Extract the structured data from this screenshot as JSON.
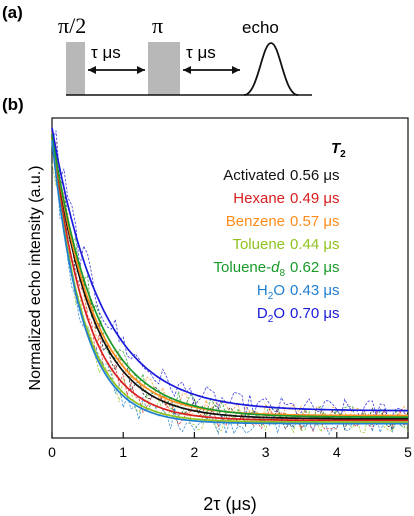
{
  "panel_a": {
    "label": "(a)",
    "pulse1_label": "π/2",
    "pulse2_label": "π",
    "delay1_label": "τ μs",
    "delay2_label": "τ μs",
    "echo_label": "echo",
    "pulse_color": "#b8b8b8"
  },
  "panel_b": {
    "label": "(b)"
  },
  "chart_data": {
    "type": "line",
    "title": "",
    "xlabel": "2τ (μs)",
    "ylabel": "Normalized echo intensity (a.u.)",
    "xlim": [
      0,
      5
    ],
    "ylim": [
      0,
      1
    ],
    "x_ticks": [
      "0",
      "1",
      "2",
      "3",
      "4",
      "5"
    ],
    "x_tick_values": [
      0,
      1,
      2,
      3,
      4,
      5
    ],
    "y_ticks_labeled": false,
    "grid": false,
    "legend_position": "top-right",
    "legend_title": "T",
    "legend_title_subscript": "2",
    "series": [
      {
        "name": "Activated",
        "value_label": "0.56 μs",
        "t2_us": 0.56,
        "color": "#111111",
        "fit_amplitude": 0.885,
        "fit_offset": 0.06
      },
      {
        "name": "Hexane",
        "value_label": "0.49 μs",
        "t2_us": 0.49,
        "color": "#d81e1e",
        "fit_amplitude": 0.885,
        "fit_offset": 0.055
      },
      {
        "name": "Benzene",
        "value_label": "0.57 μs",
        "t2_us": 0.57,
        "color": "#ff8c1a",
        "fit_amplitude": 0.885,
        "fit_offset": 0.07
      },
      {
        "name": "Toluene",
        "value_label": "0.44 μs",
        "t2_us": 0.44,
        "color": "#8fc31f",
        "fit_amplitude": 0.885,
        "fit_offset": 0.05
      },
      {
        "name": "Toluene-",
        "name_sub": "d",
        "name_subsub": "8",
        "value_label": "0.62 μs",
        "t2_us": 0.62,
        "color": "#1a9a2a",
        "fit_amplitude": 0.885,
        "fit_offset": 0.065
      },
      {
        "name": "H",
        "name_sub": "2",
        "name_tail": "O",
        "value_label": "0.43 μs",
        "t2_us": 0.43,
        "color": "#1f7fd0",
        "fit_amplitude": 0.885,
        "fit_offset": 0.045
      },
      {
        "name": "D",
        "name_sub": "2",
        "name_tail": "O",
        "value_label": "0.70 μs",
        "t2_us": 0.7,
        "color": "#1a1adc",
        "fit_amplitude": 0.885,
        "fit_offset": 0.085
      }
    ]
  }
}
